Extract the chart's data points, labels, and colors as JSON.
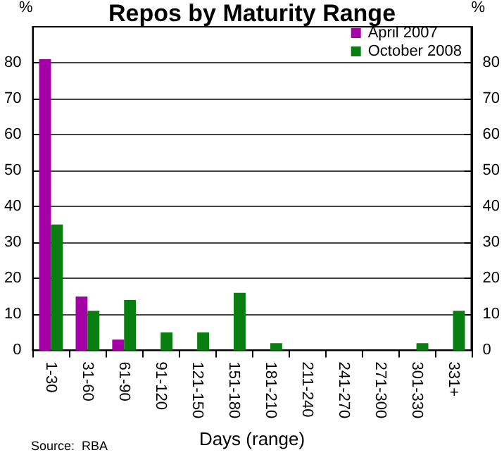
{
  "chart_data": {
    "type": "bar",
    "title": "Repos by Maturity Range",
    "xlabel": "Days (range)",
    "ylabel": "%",
    "y2label": "%",
    "categories": [
      "1-30",
      "31-60",
      "61-90",
      "91-120",
      "121-150",
      "151-180",
      "181-210",
      "211-240",
      "241-270",
      "271-300",
      "301-330",
      "331+"
    ],
    "series": [
      {
        "name": "April 2007",
        "color": "#a500a5",
        "values": [
          81,
          15,
          3,
          0,
          0,
          0,
          0,
          0,
          0,
          0,
          0,
          0
        ]
      },
      {
        "name": "October 2008",
        "color": "#087d10",
        "values": [
          35,
          11,
          14,
          5,
          5,
          16,
          2,
          0,
          0,
          0,
          2,
          11
        ]
      }
    ],
    "ylim": [
      0,
      90
    ],
    "yticks": [
      0,
      10,
      20,
      30,
      40,
      50,
      60,
      70,
      80
    ],
    "y2lim": [
      0,
      90
    ],
    "y2ticks": [
      0,
      10,
      20,
      30,
      40,
      50,
      60,
      70,
      80
    ],
    "grid": "y",
    "legend": "top right",
    "annotations": [
      "Source:  RBA"
    ]
  }
}
